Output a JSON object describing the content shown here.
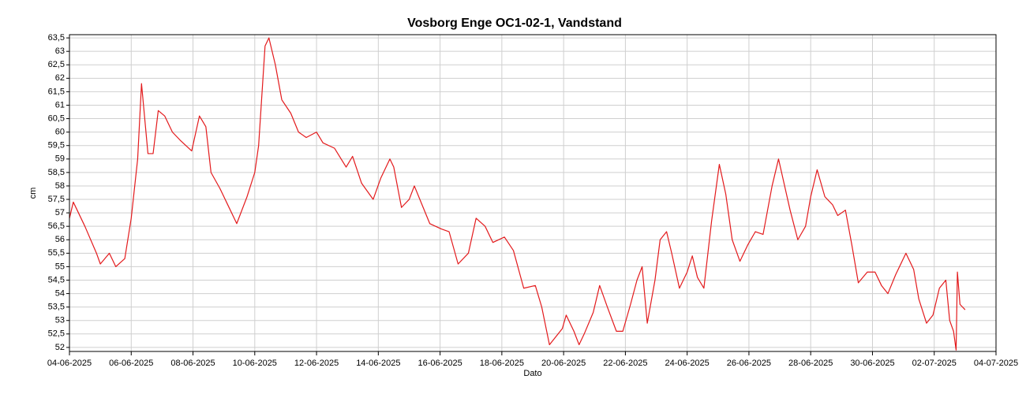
{
  "chart_data": {
    "type": "line",
    "title": "Vosborg Enge OC1-02-1, Vandstand",
    "xlabel": "Dato",
    "ylabel": "cm",
    "grid": true,
    "xlim": [
      "2025-06-04",
      "2025-07-04"
    ],
    "ylim": [
      51.85,
      63.62
    ],
    "xticks": [
      {
        "value": "2025-06-04",
        "label": "04-06-2025"
      },
      {
        "value": "2025-06-06",
        "label": "06-06-2025"
      },
      {
        "value": "2025-06-08",
        "label": "08-06-2025"
      },
      {
        "value": "2025-06-10",
        "label": "10-06-2025"
      },
      {
        "value": "2025-06-12",
        "label": "12-06-2025"
      },
      {
        "value": "2025-06-14",
        "label": "14-06-2025"
      },
      {
        "value": "2025-06-16",
        "label": "16-06-2025"
      },
      {
        "value": "2025-06-18",
        "label": "18-06-2025"
      },
      {
        "value": "2025-06-20",
        "label": "20-06-2025"
      },
      {
        "value": "2025-06-22",
        "label": "22-06-2025"
      },
      {
        "value": "2025-06-24",
        "label": "24-06-2025"
      },
      {
        "value": "2025-06-26",
        "label": "26-06-2025"
      },
      {
        "value": "2025-06-28",
        "label": "28-06-2025"
      },
      {
        "value": "2025-06-30",
        "label": "30-06-2025"
      },
      {
        "value": "2025-07-02",
        "label": "02-07-2025"
      },
      {
        "value": "2025-07-04",
        "label": "04-07-2025"
      }
    ],
    "yticks": [
      52,
      {
        "value": 52.5,
        "label": "52,5"
      },
      53,
      {
        "value": 53.5,
        "label": "53,5"
      },
      54,
      {
        "value": 54.5,
        "label": "54,5"
      },
      55,
      {
        "value": 55.5,
        "label": "55,5"
      },
      56,
      {
        "value": 56.5,
        "label": "56,5"
      },
      57,
      {
        "value": 57.5,
        "label": "57,5"
      },
      58,
      {
        "value": 58.5,
        "label": "58,5"
      },
      59,
      {
        "value": 59.5,
        "label": "59,5"
      },
      60,
      {
        "value": 60.5,
        "label": "60,5"
      },
      61,
      {
        "value": 61.5,
        "label": "61,5"
      },
      62,
      {
        "value": 62.5,
        "label": "62,5"
      },
      63,
      {
        "value": 63.5,
        "label": "63,5"
      }
    ],
    "x": [
      "2025-06-04T00:00",
      "2025-06-04T03:00",
      "2025-06-04T12:00",
      "2025-06-04T21:00",
      "2025-06-05T00:00",
      "2025-06-05T07:00",
      "2025-06-05T12:00",
      "2025-06-05T19:00",
      "2025-06-06T00:00",
      "2025-06-06T05:00",
      "2025-06-06T08:00",
      "2025-06-06T13:00",
      "2025-06-06T17:00",
      "2025-06-06T21:00",
      "2025-06-07T02:00",
      "2025-06-07T08:00",
      "2025-06-07T14:00",
      "2025-06-07T23:00",
      "2025-06-08T05:00",
      "2025-06-08T10:00",
      "2025-06-08T14:00",
      "2025-06-08T21:00",
      "2025-06-09T02:00",
      "2025-06-09T10:00",
      "2025-06-09T18:00",
      "2025-06-10T00:00",
      "2025-06-10T03:00",
      "2025-06-10T08:00",
      "2025-06-10T11:00",
      "2025-06-10T16:00",
      "2025-06-10T21:00",
      "2025-06-11T04:00",
      "2025-06-11T10:00",
      "2025-06-11T16:00",
      "2025-06-12T00:00",
      "2025-06-12T05:00",
      "2025-06-12T14:00",
      "2025-06-12T23:00",
      "2025-06-13T04:00",
      "2025-06-13T11:00",
      "2025-06-13T20:00",
      "2025-06-14T02:00",
      "2025-06-14T09:00",
      "2025-06-14T12:00",
      "2025-06-14T18:00",
      "2025-06-15T00:00",
      "2025-06-15T04:00",
      "2025-06-15T10:00",
      "2025-06-15T16:00",
      "2025-06-16T01:00",
      "2025-06-16T07:00",
      "2025-06-16T14:00",
      "2025-06-16T22:00",
      "2025-06-17T04:00",
      "2025-06-17T11:00",
      "2025-06-17T17:00",
      "2025-06-18T02:00",
      "2025-06-18T09:00",
      "2025-06-18T17:00",
      "2025-06-19T02:00",
      "2025-06-19T07:00",
      "2025-06-19T13:00",
      "2025-06-19T18:00",
      "2025-06-19T23:00",
      "2025-06-20T02:00",
      "2025-06-20T08:00",
      "2025-06-20T12:00",
      "2025-06-20T16:00",
      "2025-06-20T23:00",
      "2025-06-21T04:00",
      "2025-06-21T10:00",
      "2025-06-21T17:00",
      "2025-06-21T22:00",
      "2025-06-22T04:00",
      "2025-06-22T09:00",
      "2025-06-22T13:00",
      "2025-06-22T17:00",
      "2025-06-22T23:00",
      "2025-06-23T03:00",
      "2025-06-23T08:00",
      "2025-06-23T12:00",
      "2025-06-23T18:00",
      "2025-06-24T00:00",
      "2025-06-24T04:00",
      "2025-06-24T08:00",
      "2025-06-24T13:00",
      "2025-06-24T19:00",
      "2025-06-25T01:00",
      "2025-06-25T06:00",
      "2025-06-25T11:00",
      "2025-06-25T17:00",
      "2025-06-25T23:00",
      "2025-06-26T05:00",
      "2025-06-26T11:00",
      "2025-06-26T18:00",
      "2025-06-26T23:00",
      "2025-06-27T08:00",
      "2025-06-27T14:00",
      "2025-06-27T20:00",
      "2025-06-28T00:00",
      "2025-06-28T05:00",
      "2025-06-28T11:00",
      "2025-06-28T17:00",
      "2025-06-28T21:00",
      "2025-06-29T03:00",
      "2025-06-29T08:00",
      "2025-06-29T13:00",
      "2025-06-29T20:00",
      "2025-06-30T02:00",
      "2025-06-30T07:00",
      "2025-06-30T12:00",
      "2025-06-30T18:00",
      "2025-07-01T02:00",
      "2025-07-01T08:00",
      "2025-07-01T12:00",
      "2025-07-01T18:00",
      "2025-07-01T23:00",
      "2025-07-02T04:00",
      "2025-07-02T09:00",
      "2025-07-02T12:00",
      "2025-07-02T15:00",
      "2025-07-02T17:00",
      "2025-07-02T18:00",
      "2025-07-02T20:00",
      "2025-07-03T00:00"
    ],
    "series": [
      {
        "color": "#e31a1c",
        "values": [
          56.8,
          57.4,
          56.5,
          55.5,
          55.1,
          55.5,
          55.0,
          55.3,
          56.8,
          59.0,
          61.8,
          59.2,
          59.2,
          60.8,
          60.6,
          60.0,
          59.7,
          59.3,
          60.6,
          60.2,
          58.5,
          57.9,
          57.4,
          56.6,
          57.6,
          58.5,
          59.5,
          63.2,
          63.5,
          62.5,
          61.2,
          60.7,
          60.0,
          59.8,
          60.0,
          59.6,
          59.4,
          58.7,
          59.1,
          58.1,
          57.5,
          58.3,
          59.0,
          58.7,
          57.2,
          57.5,
          58.0,
          57.3,
          56.6,
          56.4,
          56.3,
          55.1,
          55.5,
          56.8,
          56.5,
          55.9,
          56.1,
          55.6,
          54.2,
          54.3,
          53.5,
          52.1,
          52.4,
          52.7,
          53.2,
          52.6,
          52.1,
          52.5,
          53.3,
          54.3,
          53.5,
          52.6,
          52.6,
          53.6,
          54.5,
          55.0,
          52.9,
          54.5,
          56.0,
          56.3,
          55.5,
          54.2,
          54.8,
          55.4,
          54.6,
          54.2,
          56.7,
          58.8,
          57.7,
          56.0,
          55.2,
          55.8,
          56.3,
          56.2,
          58.0,
          59.0,
          57.1,
          56.0,
          56.5,
          57.6,
          58.6,
          57.6,
          57.3,
          56.9,
          57.1,
          55.8,
          54.4,
          54.8,
          54.8,
          54.3,
          54.0,
          54.7,
          55.5,
          54.9,
          53.8,
          52.9,
          53.2,
          54.2,
          54.5,
          53.0,
          52.6,
          51.9,
          54.8,
          53.6,
          53.4
        ]
      }
    ]
  }
}
